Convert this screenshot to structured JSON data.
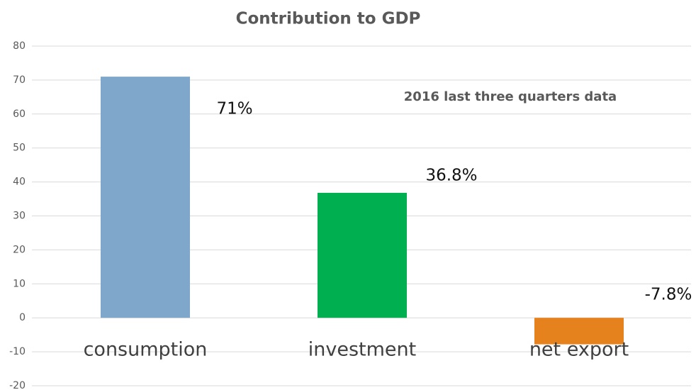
{
  "chart_data": {
    "type": "bar",
    "title": "Contribution to GDP",
    "annotation": "2016 last three quarters data",
    "categories": [
      "consumption",
      "investment",
      "net export"
    ],
    "values": [
      71,
      36.8,
      -7.8
    ],
    "value_labels": [
      "71%",
      "36.8%",
      "-7.8%"
    ],
    "colors": [
      "#7fa7cb",
      "#00b050",
      "#e6821e"
    ],
    "ylim": [
      -20,
      80
    ],
    "yticks": [
      -20,
      -10,
      0,
      10,
      20,
      30,
      40,
      50,
      60,
      70,
      80
    ],
    "grid": true
  }
}
